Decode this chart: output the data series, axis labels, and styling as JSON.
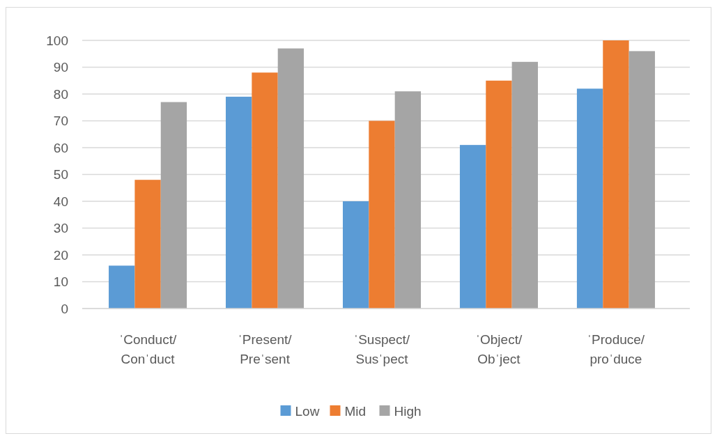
{
  "chart_data": {
    "type": "bar",
    "categories": [
      "ˈConduct/\nConˈduct",
      "ˈPresent/\nPreˈsent",
      "ˈSuspect/\nSusˈpect",
      "ˈObject/\nObˈject",
      "ˈProduce/\nproˈduce"
    ],
    "series": [
      {
        "name": "Low",
        "color": "#5b9bd5",
        "values": [
          16,
          79,
          40,
          61,
          82
        ]
      },
      {
        "name": "Mid",
        "color": "#ed7d31",
        "values": [
          48,
          88,
          70,
          85,
          100
        ]
      },
      {
        "name": "High",
        "color": "#a5a5a5",
        "values": [
          77,
          97,
          81,
          92,
          96
        ]
      }
    ],
    "ylim": [
      0,
      100
    ],
    "yticks": [
      0,
      10,
      20,
      30,
      40,
      50,
      60,
      70,
      80,
      90,
      100
    ],
    "grid": "y",
    "legend": "bottom"
  }
}
